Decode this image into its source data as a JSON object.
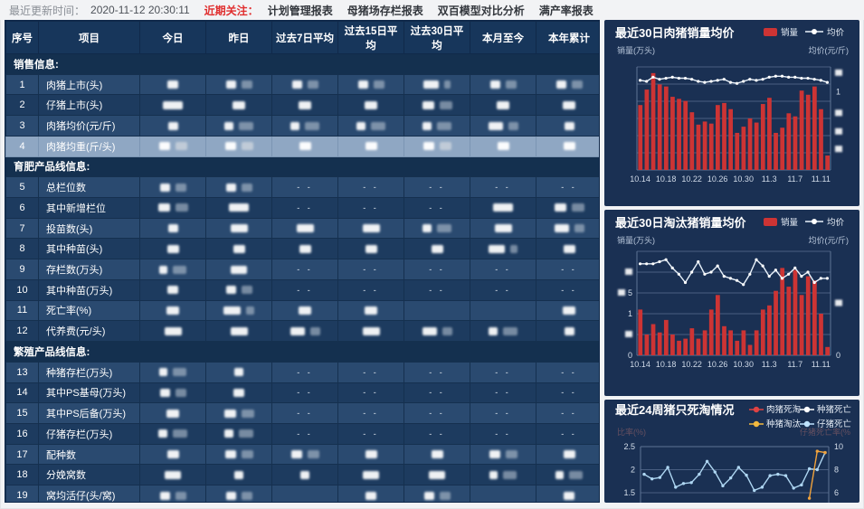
{
  "topbar": {
    "updated_label": "最近更新时间：",
    "updated_time": "2020-11-12 20:30:11",
    "focus_label": "近期关注：",
    "menu": [
      "计划管理报表",
      "母猪场存栏报表",
      "双百模型对比分析",
      "满产率报表"
    ]
  },
  "table": {
    "headers": [
      "序号",
      "项目",
      "今日",
      "昨日",
      "过去7日平均",
      "过去15日平均",
      "过去30日平均",
      "本月至今",
      "本年累计"
    ],
    "dash_text": "- -",
    "rows": [
      {
        "section": "销售信息:"
      },
      {
        "no": "1",
        "label": "肉猪上市(头)",
        "cells": [
          "r1",
          "r2",
          "r2",
          "r2",
          "rw",
          "r2",
          "r2"
        ]
      },
      {
        "no": "2",
        "label": "仔猪上市(头)",
        "cells": [
          "r3",
          "r1",
          "r1",
          "r1",
          "r2",
          "r1",
          "r1"
        ]
      },
      {
        "no": "3",
        "label": "肉猪均价(元/斤)",
        "cells": [
          "r1",
          "r2",
          "r2",
          "r2",
          "r2",
          "rw",
          "r1"
        ]
      },
      {
        "no": "4",
        "label": "肉猪均重(斤/头)",
        "highlight": true,
        "cells": [
          "r2",
          "r2",
          "r1",
          "r1",
          "r2",
          "r1",
          "r1"
        ]
      },
      {
        "section": "育肥产品线信息:"
      },
      {
        "no": "5",
        "label": "总栏位数",
        "cells": [
          "r2",
          "r2",
          "--",
          "--",
          "--",
          "--",
          "--"
        ]
      },
      {
        "no": "6",
        "label": "其中新增栏位",
        "cells": [
          "r2",
          "r3",
          "--",
          "--",
          "--",
          "r3",
          "r2"
        ]
      },
      {
        "no": "7",
        "label": "投苗数(头)",
        "cells": [
          "r1",
          "r3",
          "r3",
          "r3",
          "r2",
          "r3",
          "rw"
        ]
      },
      {
        "no": "8",
        "label": "其中种苗(头)",
        "cells": [
          "r1",
          "r1",
          "r1",
          "r1",
          "r1",
          "rw",
          "r1"
        ]
      },
      {
        "no": "9",
        "label": "存栏数(万头)",
        "cells": [
          "r2",
          "r3",
          "--",
          "--",
          "--",
          "--",
          "--"
        ]
      },
      {
        "no": "10",
        "label": "其中种苗(万头)",
        "cells": [
          "r1",
          "r2",
          "--",
          "--",
          "--",
          "--",
          "--"
        ]
      },
      {
        "no": "11",
        "label": "死亡率(%)",
        "cells": [
          "r1",
          "rw",
          "r1",
          "r1",
          "",
          "",
          "r1"
        ]
      },
      {
        "no": "12",
        "label": "代养费(元/头)",
        "cells": [
          "r3",
          "r3",
          "rw",
          "r3",
          "rw",
          "r2",
          "r1"
        ]
      },
      {
        "section": "繁殖产品线信息:"
      },
      {
        "no": "13",
        "label": "种猪存栏(万头)",
        "cells": [
          "r2",
          "r1",
          "--",
          "--",
          "--",
          "--",
          "--"
        ]
      },
      {
        "no": "14",
        "label": "其中PS基母(万头)",
        "cells": [
          "r2",
          "r1",
          "--",
          "--",
          "--",
          "--",
          "--"
        ]
      },
      {
        "no": "15",
        "label": "其中PS后备(万头)",
        "cells": [
          "r1",
          "r2",
          "--",
          "--",
          "--",
          "--",
          "--"
        ]
      },
      {
        "no": "16",
        "label": "仔猪存栏(万头)",
        "cells": [
          "r2",
          "r2",
          "--",
          "--",
          "--",
          "--",
          "--"
        ]
      },
      {
        "no": "17",
        "label": "配种数",
        "cells": [
          "r1",
          "r2",
          "r2",
          "r1",
          "r1",
          "r2",
          "r1"
        ]
      },
      {
        "no": "18",
        "label": "分娩窝数",
        "cells": [
          "r3",
          "r1",
          "r1",
          "r3",
          "r3",
          "r2",
          "r2"
        ]
      },
      {
        "no": "19",
        "label": "窝均活仔(头/窝)",
        "cells": [
          "r2",
          "r2",
          "",
          "r1",
          "r2",
          "",
          "r1"
        ]
      }
    ]
  },
  "chart_data": [
    {
      "type": "bar+line",
      "title": "最近30日肉猪销量均价",
      "legend_bar": "销量",
      "legend_line": "均价",
      "y_left_label": "销量(万头)",
      "y_right_label": "均价(元/斤)",
      "x_labels": [
        "10.14",
        "10.18",
        "10.22",
        "10.26",
        "10.30",
        "11.3",
        "11.7",
        "11.11"
      ],
      "bar_color": "#cd3434",
      "ylim": [
        0,
        1
      ],
      "bars": [
        0.63,
        0.78,
        0.94,
        0.83,
        0.81,
        0.71,
        0.69,
        0.67,
        0.56,
        0.44,
        0.47,
        0.45,
        0.63,
        0.65,
        0.59,
        0.36,
        0.42,
        0.5,
        0.46,
        0.64,
        0.7,
        0.36,
        0.41,
        0.55,
        0.52,
        0.77,
        0.73,
        0.81,
        0.59,
        0.14
      ],
      "line": [
        0.87,
        0.86,
        0.9,
        0.88,
        0.89,
        0.9,
        0.89,
        0.89,
        0.88,
        0.86,
        0.85,
        0.86,
        0.87,
        0.88,
        0.85,
        0.84,
        0.86,
        0.88,
        0.87,
        0.88,
        0.9,
        0.91,
        0.91,
        0.9,
        0.9,
        0.89,
        0.89,
        0.88,
        0.87,
        0.85
      ],
      "left_ticks": [],
      "right_ticks": [
        {
          "f": 0.06,
          "t": "▨"
        },
        {
          "f": 0.24,
          "t": "1"
        },
        {
          "f": 0.45,
          "t": "▨"
        },
        {
          "f": 0.63,
          "t": "▨"
        },
        {
          "f": 0.8,
          "t": "▨"
        }
      ]
    },
    {
      "type": "bar+line",
      "title": "最近30日淘汰猪销量均价",
      "legend_bar": "销量",
      "legend_line": "均价",
      "y_left_label": "销量(万头)",
      "y_right_label": "均价(元/斤)",
      "x_labels": [
        "10.14",
        "10.18",
        "10.22",
        "10.26",
        "10.30",
        "11.3",
        "11.7",
        "11.11"
      ],
      "bar_color": "#cd3434",
      "ylim": [
        0,
        2.5
      ],
      "bars": [
        1.1,
        0.5,
        0.75,
        0.55,
        0.85,
        0.5,
        0.35,
        0.4,
        0.65,
        0.4,
        0.6,
        1.1,
        1.45,
        0.7,
        0.6,
        0.35,
        0.6,
        0.25,
        0.6,
        1.1,
        1.2,
        1.55,
        2.1,
        1.65,
        2.05,
        1.45,
        1.9,
        1.8,
        1.0,
        0.2
      ],
      "line": [
        2.2,
        2.2,
        2.2,
        2.25,
        2.3,
        2.1,
        1.95,
        1.75,
        2.0,
        2.25,
        1.95,
        2.0,
        2.15,
        1.9,
        1.85,
        1.8,
        1.7,
        1.95,
        2.3,
        2.15,
        1.9,
        2.05,
        1.85,
        1.95,
        2.1,
        1.9,
        2.0,
        1.75,
        1.85,
        1.85
      ],
      "left_ticks": [
        {
          "v": 2,
          "t": "▨"
        },
        {
          "v": 1.5,
          "t": "▨5"
        },
        {
          "v": 1,
          "t": "1"
        },
        {
          "v": 0.5,
          "t": "▨"
        },
        {
          "v": 0,
          "t": "0"
        }
      ],
      "right_ticks": [
        {
          "v": 1.25,
          "t": "▨"
        },
        {
          "v": 0,
          "t": "0"
        }
      ]
    },
    {
      "type": "multi-line",
      "title": "最近24周猪只死淘情况",
      "legend": [
        {
          "label": "肉猪死淘",
          "color": "#e04343"
        },
        {
          "label": "种猪死亡",
          "color": "#ffffff"
        },
        {
          "label": "种猪淘汰",
          "color": "#f2b93f"
        },
        {
          "label": "仔猪死亡",
          "color": "#bfe3ff"
        }
      ],
      "y_left_label_faded": "比率(%)",
      "y_right_label_faded": "仔猪死亡率(%",
      "y_left_ticks": [
        "2.5",
        "2",
        "1.5"
      ],
      "y_right_ticks": [
        "10",
        "8",
        "6"
      ],
      "ylim": [
        1.5,
        2.5
      ],
      "series": {
        "piglet_death": [
          1.9,
          1.8,
          1.83,
          2.05,
          1.62,
          1.7,
          1.72,
          1.9,
          2.18,
          1.95,
          1.65,
          1.82,
          2.05,
          1.88,
          1.55,
          1.62,
          1.87,
          1.9,
          1.87,
          1.6,
          1.67,
          2.02,
          2.0,
          2.37
        ],
        "breeder_cull": [
          null,
          null,
          null,
          null,
          null,
          null,
          null,
          null,
          null,
          null,
          null,
          null,
          null,
          null,
          null,
          null,
          null,
          null,
          null,
          null,
          null,
          1.38,
          2.4,
          2.37
        ],
        "pig_death": [],
        "breeder_death": []
      }
    }
  ]
}
